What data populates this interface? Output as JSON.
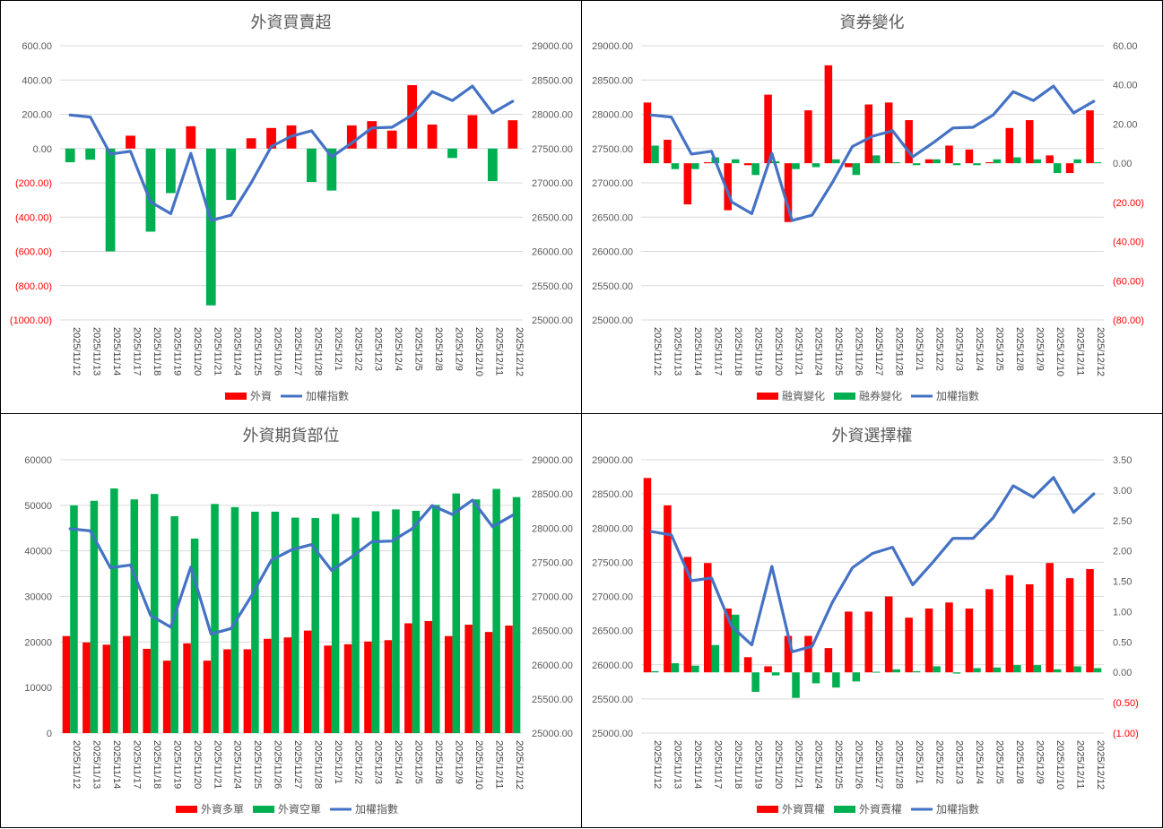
{
  "colors": {
    "red": "#ff0000",
    "green": "#00b050",
    "blue": "#4472c4",
    "grid": "#d9d9d9",
    "text": "#595959",
    "neg": "#ff0000"
  },
  "chart_data": [
    {
      "id": "foreign_net",
      "type": "bar",
      "title": "外資買賣超",
      "categories": [
        "2025/11/12",
        "2025/11/13",
        "2025/11/14",
        "2025/11/17",
        "2025/11/18",
        "2025/11/19",
        "2025/11/20",
        "2025/11/21",
        "2025/11/24",
        "2025/11/25",
        "2025/11/26",
        "2025/11/27",
        "2025/11/28",
        "2025/12/1",
        "2025/12/2",
        "2025/12/3",
        "2025/12/4",
        "2025/12/5",
        "2025/12/8",
        "2025/12/9",
        "2025/12/10",
        "2025/12/11",
        "2025/12/12"
      ],
      "series": [
        {
          "name": "外資",
          "kind": "bar",
          "axis": "left",
          "values": [
            -80,
            -65,
            -600,
            75,
            -485,
            -260,
            130,
            -915,
            -300,
            60,
            120,
            135,
            -195,
            -245,
            135,
            160,
            105,
            370,
            140,
            -55,
            195,
            -190,
            165
          ],
          "colors": "sign"
        },
        {
          "name": "加權指數",
          "kind": "line",
          "axis": "right",
          "values": [
            27990,
            27960,
            27420,
            27460,
            26720,
            26550,
            27430,
            26450,
            26530,
            27000,
            27530,
            27680,
            27760,
            27380,
            27580,
            27800,
            27810,
            27990,
            28330,
            28200,
            28410,
            28020,
            28190
          ]
        }
      ],
      "left_axis": {
        "min": -1000,
        "max": 600,
        "step": 200,
        "format": "fin2"
      },
      "right_axis": {
        "min": 25000,
        "max": 29000,
        "step": 500,
        "format": "dec2"
      },
      "legend": [
        "外資",
        "加權指數"
      ]
    },
    {
      "id": "margin_short",
      "type": "bar",
      "title": "資券變化",
      "categories": [
        "2025/11/12",
        "2025/11/13",
        "2025/11/14",
        "2025/11/17",
        "2025/11/18",
        "2025/11/19",
        "2025/11/20",
        "2025/11/21",
        "2025/11/24",
        "2025/11/25",
        "2025/11/26",
        "2025/11/27",
        "2025/11/28",
        "2025/12/1",
        "2025/12/2",
        "2025/12/3",
        "2025/12/4",
        "2025/12/5",
        "2025/12/8",
        "2025/12/9",
        "2025/12/10",
        "2025/12/11",
        "2025/12/12"
      ],
      "series": [
        {
          "name": "融資變化",
          "kind": "bar",
          "axis": "right",
          "values": [
            31,
            12,
            -21,
            0.5,
            -24,
            -1,
            35,
            -30,
            27,
            50,
            -2,
            30,
            31,
            22,
            2,
            9,
            7,
            0.5,
            18,
            22,
            4,
            -5,
            27
          ],
          "colors": "red"
        },
        {
          "name": "融券變化",
          "kind": "bar",
          "axis": "right",
          "values": [
            9,
            -3,
            -3,
            3,
            2,
            -6,
            1,
            -3,
            -2,
            2,
            -6,
            4,
            0.5,
            -1,
            2,
            -1,
            -1,
            2,
            3,
            2,
            -5,
            2,
            0.5
          ],
          "colors": "green"
        },
        {
          "name": "加權指數",
          "kind": "line",
          "axis": "left",
          "values": [
            27990,
            27960,
            27420,
            27460,
            26720,
            26550,
            27430,
            26450,
            26530,
            27000,
            27530,
            27680,
            27760,
            27380,
            27580,
            27800,
            27810,
            27990,
            28330,
            28200,
            28410,
            28020,
            28190
          ]
        }
      ],
      "left_axis": {
        "min": 25000,
        "max": 29000,
        "step": 500,
        "format": "dec2"
      },
      "right_axis": {
        "min": -80,
        "max": 60,
        "step": 20,
        "format": "fin2"
      },
      "legend": [
        "融資變化",
        "融券變化",
        "加權指數"
      ]
    },
    {
      "id": "foreign_futures",
      "type": "bar",
      "title": "外資期貨部位",
      "categories": [
        "2025/11/12",
        "2025/11/13",
        "2025/11/14",
        "2025/11/17",
        "2025/11/18",
        "2025/11/19",
        "2025/11/20",
        "2025/11/21",
        "2025/11/24",
        "2025/11/25",
        "2025/11/26",
        "2025/11/27",
        "2025/11/28",
        "2025/12/1",
        "2025/12/2",
        "2025/12/3",
        "2025/12/4",
        "2025/12/5",
        "2025/12/8",
        "2025/12/9",
        "2025/12/10",
        "2025/12/11",
        "2025/12/12"
      ],
      "series": [
        {
          "name": "外資多單",
          "kind": "bar",
          "axis": "left",
          "values": [
            21300,
            19900,
            19400,
            21300,
            18500,
            15900,
            19700,
            15900,
            18400,
            18400,
            20700,
            21000,
            22500,
            19200,
            19500,
            20100,
            20400,
            24100,
            24600,
            21300,
            23800,
            22200,
            23600
          ],
          "colors": "red"
        },
        {
          "name": "外資空單",
          "kind": "bar",
          "axis": "left",
          "values": [
            50000,
            51000,
            53700,
            51300,
            52500,
            47600,
            42700,
            50300,
            49600,
            48600,
            48600,
            47300,
            47200,
            48100,
            47300,
            48700,
            49100,
            48800,
            50100,
            52600,
            51300,
            53600,
            51800
          ],
          "colors": "green"
        },
        {
          "name": "加權指數",
          "kind": "line",
          "axis": "right",
          "values": [
            27990,
            27960,
            27420,
            27460,
            26720,
            26550,
            27430,
            26450,
            26530,
            27000,
            27530,
            27680,
            27760,
            27380,
            27580,
            27800,
            27810,
            27990,
            28330,
            28200,
            28410,
            28020,
            28190
          ]
        }
      ],
      "left_axis": {
        "min": 0,
        "max": 60000,
        "step": 10000,
        "format": "int"
      },
      "right_axis": {
        "min": 25000,
        "max": 29000,
        "step": 500,
        "format": "dec2"
      },
      "legend": [
        "外資多單",
        "外資空單",
        "加權指數"
      ]
    },
    {
      "id": "foreign_options",
      "type": "bar",
      "title": "外資選擇權",
      "categories": [
        "2025/11/12",
        "2025/11/13",
        "2025/11/14",
        "2025/11/17",
        "2025/11/18",
        "2025/11/19",
        "2025/11/20",
        "2025/11/21",
        "2025/11/24",
        "2025/11/25",
        "2025/11/26",
        "2025/11/27",
        "2025/11/28",
        "2025/12/1",
        "2025/12/2",
        "2025/12/3",
        "2025/12/4",
        "2025/12/5",
        "2025/12/8",
        "2025/12/9",
        "2025/12/10",
        "2025/12/11",
        "2025/12/12"
      ],
      "series": [
        {
          "name": "外資買權",
          "kind": "bar",
          "axis": "right",
          "values": [
            3.2,
            2.75,
            1.9,
            1.8,
            1.05,
            0.25,
            0.1,
            0.6,
            0.6,
            0.4,
            1.0,
            1.0,
            1.25,
            0.9,
            1.05,
            1.15,
            1.05,
            1.37,
            1.6,
            1.45,
            1.8,
            1.55,
            1.7
          ],
          "colors": "red"
        },
        {
          "name": "外資賣權",
          "kind": "bar",
          "axis": "right",
          "values": [
            0.02,
            0.15,
            0.11,
            0.45,
            0.95,
            -0.32,
            -0.05,
            -0.42,
            -0.18,
            -0.25,
            -0.15,
            0.01,
            0.05,
            0.02,
            0.1,
            -0.02,
            0.07,
            0.08,
            0.12,
            0.12,
            0.05,
            0.1,
            0.07
          ],
          "colors": "green"
        },
        {
          "name": "加權指數",
          "kind": "line",
          "axis": "left",
          "values": [
            27950,
            27900,
            27230,
            27270,
            26560,
            26290,
            27440,
            26190,
            26270,
            26910,
            27420,
            27630,
            27720,
            27170,
            27500,
            27850,
            27850,
            28150,
            28620,
            28450,
            28740,
            28230,
            28500
          ]
        }
      ],
      "left_axis": {
        "min": 25000,
        "max": 29000,
        "step": 500,
        "format": "dec2"
      },
      "right_axis": {
        "min": -1,
        "max": 3.5,
        "step": 0.5,
        "format": "fin2"
      },
      "legend": [
        "外資買權",
        "外資賣權",
        "加權指數"
      ]
    }
  ]
}
